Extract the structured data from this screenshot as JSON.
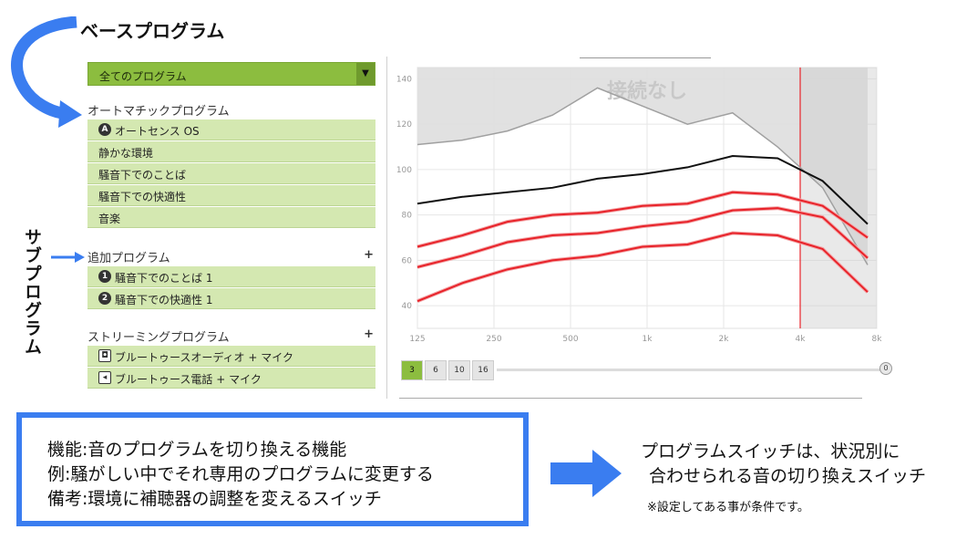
{
  "annotations": {
    "base_program": "ベースプログラム",
    "sub_program": "サブプログラム"
  },
  "panel": {
    "dropdown_label": "全てのプログラム",
    "dropdown_arrow": "▼",
    "automatic": {
      "heading": "オートマチックプログラム",
      "items": [
        {
          "icon": "A",
          "label": "オートセンス OS"
        },
        {
          "label": "静かな環境"
        },
        {
          "label": "騒音下でのことば"
        },
        {
          "label": "騒音下での快適性"
        },
        {
          "label": "音楽"
        }
      ]
    },
    "additional": {
      "heading": "追加プログラム",
      "plus": "+",
      "items": [
        {
          "icon": "1",
          "label": "騒音下でのことば 1"
        },
        {
          "icon": "2",
          "label": "騒音下での快適性 1"
        }
      ]
    },
    "streaming": {
      "heading": "ストリーミングプログラム",
      "plus": "+",
      "items": [
        {
          "icon": "speaker-icon",
          "label": "ブルートゥースオーディオ + マイク"
        },
        {
          "icon": "phone-volume-icon",
          "label": "ブルートゥース電話 + マイク"
        }
      ]
    }
  },
  "chart_data": {
    "type": "line",
    "overlay_text": "接続なし",
    "x_ticks": [
      "125",
      "250",
      "500",
      "1k",
      "2k",
      "4k",
      "8k"
    ],
    "y_ticks": [
      "40",
      "60",
      "80",
      "100",
      "120",
      "140"
    ],
    "ylim": [
      30,
      145
    ],
    "marker_x": "4k",
    "series": [
      {
        "color": "#a0a0a0",
        "values": [
          111,
          113,
          117,
          124,
          136,
          128,
          120,
          125,
          110,
          92,
          58
        ]
      },
      {
        "color": "#111111",
        "values": [
          85,
          88,
          90,
          92,
          96,
          98,
          101,
          106,
          105,
          95,
          76
        ]
      },
      {
        "color": "#e8232a",
        "values": [
          66,
          71,
          77,
          80,
          81,
          84,
          85,
          90,
          89,
          84,
          70
        ]
      },
      {
        "color": "#e8232a",
        "values": [
          57,
          62,
          68,
          71,
          72,
          75,
          77,
          82,
          83,
          79,
          61
        ]
      },
      {
        "color": "#e8232a",
        "values": [
          42,
          50,
          56,
          60,
          62,
          66,
          67,
          72,
          71,
          65,
          46
        ]
      }
    ]
  },
  "channel_tabs": [
    "3",
    "6",
    "10",
    "16"
  ],
  "slider_knob": "0",
  "info": {
    "line1": "機能:音のプログラムを切り換える機能",
    "line2": "例:騒がしい中でそれ専用のプログラムに変更する",
    "line3": "備考:環境に補聴器の調整を変えるスイッチ"
  },
  "description": {
    "line1": "プログラムスイッチは、状況別に",
    "line2": "合わせられる音の切り換えスイッチ",
    "note": "※設定してある事が条件です。"
  },
  "colors": {
    "accent_green": "#8cbd3f",
    "item_green": "#d4e8b1",
    "arrow_blue": "#3a7df0",
    "curve_red": "#e8232a"
  }
}
